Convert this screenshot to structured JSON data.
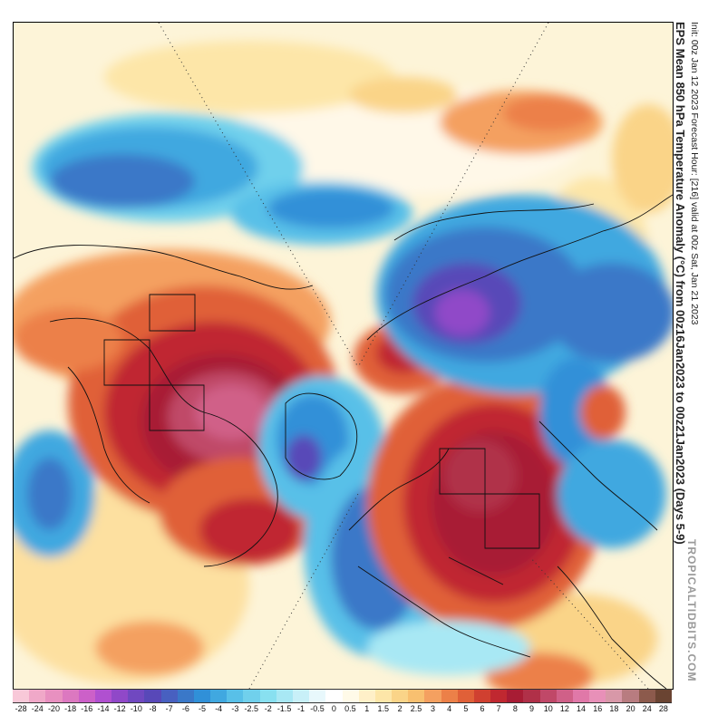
{
  "title": "EPS Mean 850 hPa Temperature Anomaly (°C) from 00z16Jan2023 to 00z21Jan2023 (Days 5-9)",
  "subtitle": "Init: 00z Jan 12 2023   Forecast Hour: [216]   valid at 00z Sat, Jan 21 2023",
  "watermark": "TROPICALTIDBITS.COM",
  "colorbar": {
    "labels": [
      "-28",
      "-24",
      "-20",
      "-18",
      "-16",
      "-14",
      "-12",
      "-10",
      "-8",
      "-7",
      "-6",
      "-5",
      "-4",
      "-3",
      "-2.5",
      "-2",
      "-1.5",
      "-1",
      "-0.5",
      "0",
      "0.5",
      "1",
      "1.5",
      "2",
      "2.5",
      "3",
      "4",
      "5",
      "6",
      "7",
      "8",
      "9",
      "10",
      "12",
      "14",
      "16",
      "18",
      "20",
      "24",
      "28"
    ],
    "colors": [
      "#f8c8d8",
      "#f0a8c8",
      "#e890c0",
      "#dc78c0",
      "#cc60c8",
      "#b050d0",
      "#9048c8",
      "#7048c0",
      "#5848b8",
      "#4860c0",
      "#3a78c8",
      "#3090d8",
      "#40a8e0",
      "#58c0e8",
      "#70d0ec",
      "#88e0f0",
      "#a8e8f4",
      "#c8f0f8",
      "#e8f8fc",
      "#ffffff",
      "#fffae8",
      "#fff0c8",
      "#fde6a8",
      "#fad488",
      "#f8c070",
      "#f4a060",
      "#ec8048",
      "#e06038",
      "#d04030",
      "#c02830",
      "#a81c34",
      "#b03048",
      "#c04868",
      "#d06088",
      "#e078a8",
      "#e890b8",
      "#d898a8",
      "#b87c80",
      "#8c5a4c",
      "#6a4432"
    ]
  },
  "map_labels": {
    "features": [
      "north-america-warm-anomaly",
      "europe-russia-warm-anomaly",
      "siberia-cold-anomaly",
      "western-europe-cold-anomaly",
      "pacific-cold-anomaly"
    ]
  }
}
